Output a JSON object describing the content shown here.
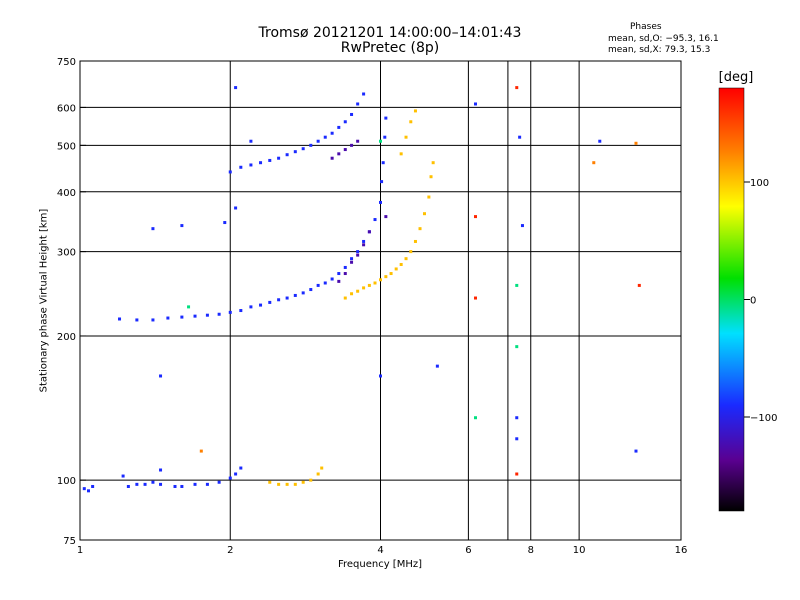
{
  "header": {
    "title": "Tromsø 20121201 14:00:00–14:01:43",
    "subtitle": "RwPretec (8p)"
  },
  "phase_box": {
    "heading": "Phases",
    "line_o": "mean, sd,O: −95.3, 16.1",
    "line_x": "mean, sd,X:  79.3, 15.3"
  },
  "colorbar": {
    "unit": "[deg]",
    "tick_labels": [
      "100",
      "0",
      "−100"
    ],
    "ticks": [
      100,
      0,
      -100
    ],
    "range": [
      -180,
      180
    ]
  },
  "chart_data": {
    "type": "scatter",
    "title": "Tromsø 20121201 14:00:00–14:01:43",
    "subtitle": "RwPretec (8p)",
    "xlabel": "Frequency [MHz]",
    "ylabel": "Stationary phase Virtual Height [km]",
    "x_scale": "log",
    "y_scale": "log",
    "xlim": [
      1,
      16
    ],
    "ylim": [
      75,
      750
    ],
    "x_ticks": [
      1,
      2,
      4,
      6,
      8,
      10,
      16
    ],
    "x_tick_labels": [
      "1",
      "2",
      "4",
      "6",
      "8",
      "10",
      "16"
    ],
    "y_ticks": [
      75,
      100,
      200,
      300,
      400,
      500,
      600,
      750
    ],
    "y_tick_labels": [
      "75",
      "100",
      "200",
      "300",
      "400",
      "500",
      "600",
      "750"
    ],
    "grid_x": [
      2,
      4,
      6,
      7.2,
      8,
      10
    ],
    "grid_y": [
      100,
      200,
      300,
      400,
      500,
      600
    ],
    "color_scale": "phase in degrees",
    "series": [
      {
        "phase": -100,
        "points": [
          [
            1.02,
            96
          ],
          [
            1.04,
            95
          ],
          [
            1.06,
            97
          ],
          [
            1.25,
            97
          ],
          [
            1.3,
            98
          ],
          [
            1.35,
            98
          ],
          [
            1.4,
            99
          ],
          [
            1.45,
            98
          ],
          [
            1.55,
            97
          ],
          [
            1.6,
            97
          ],
          [
            1.7,
            98
          ],
          [
            1.8,
            98
          ],
          [
            1.9,
            99
          ],
          [
            2.0,
            101
          ],
          [
            2.05,
            103
          ],
          [
            2.1,
            106
          ],
          [
            1.22,
            102
          ],
          [
            1.45,
            105
          ],
          [
            1.2,
            217
          ],
          [
            1.3,
            216
          ],
          [
            1.4,
            216
          ],
          [
            1.5,
            218
          ],
          [
            1.6,
            219
          ],
          [
            1.7,
            220
          ],
          [
            1.8,
            221
          ],
          [
            1.9,
            222
          ],
          [
            2.0,
            224
          ],
          [
            2.1,
            226
          ],
          [
            2.2,
            230
          ],
          [
            2.3,
            232
          ],
          [
            2.4,
            235
          ],
          [
            2.5,
            238
          ],
          [
            2.6,
            240
          ],
          [
            2.7,
            243
          ],
          [
            2.8,
            246
          ],
          [
            2.9,
            250
          ],
          [
            3.0,
            255
          ],
          [
            3.1,
            258
          ],
          [
            3.2,
            263
          ],
          [
            3.3,
            270
          ],
          [
            3.4,
            278
          ],
          [
            3.5,
            290
          ],
          [
            3.6,
            300
          ],
          [
            3.7,
            315
          ],
          [
            3.8,
            330
          ],
          [
            3.9,
            350
          ],
          [
            4.0,
            380
          ],
          [
            4.02,
            420
          ],
          [
            4.05,
            460
          ],
          [
            4.08,
            520
          ],
          [
            4.1,
            570
          ],
          [
            2.0,
            440
          ],
          [
            2.1,
            450
          ],
          [
            2.2,
            455
          ],
          [
            2.3,
            460
          ],
          [
            2.4,
            465
          ],
          [
            2.5,
            470
          ],
          [
            2.6,
            478
          ],
          [
            2.7,
            485
          ],
          [
            2.8,
            492
          ],
          [
            2.9,
            500
          ],
          [
            3.0,
            510
          ],
          [
            3.1,
            520
          ],
          [
            3.2,
            530
          ],
          [
            3.3,
            545
          ],
          [
            3.4,
            560
          ],
          [
            3.5,
            580
          ],
          [
            3.6,
            610
          ],
          [
            3.7,
            640
          ],
          [
            1.4,
            335
          ],
          [
            1.6,
            340
          ],
          [
            1.95,
            345
          ],
          [
            2.05,
            370
          ],
          [
            2.05,
            660
          ],
          [
            2.2,
            510
          ],
          [
            1.45,
            165
          ],
          [
            6.2,
            610
          ],
          [
            7.5,
            135
          ],
          [
            7.5,
            122
          ],
          [
            7.6,
            520
          ],
          [
            7.7,
            340
          ],
          [
            11,
            510
          ],
          [
            13,
            115
          ],
          [
            5.2,
            173
          ],
          [
            4.0,
            165
          ]
        ]
      },
      {
        "phase": -130,
        "points": [
          [
            3.2,
            470
          ],
          [
            3.3,
            480
          ],
          [
            3.4,
            490
          ],
          [
            3.5,
            500
          ],
          [
            3.6,
            510
          ],
          [
            3.3,
            260
          ],
          [
            3.4,
            270
          ],
          [
            3.5,
            285
          ],
          [
            3.6,
            295
          ],
          [
            3.7,
            310
          ],
          [
            3.8,
            330
          ],
          [
            4.1,
            355
          ]
        ]
      },
      {
        "phase": 105,
        "points": [
          [
            3.4,
            240
          ],
          [
            3.5,
            245
          ],
          [
            3.6,
            248
          ],
          [
            3.7,
            252
          ],
          [
            3.8,
            255
          ],
          [
            3.9,
            258
          ],
          [
            4.0,
            262
          ],
          [
            4.1,
            266
          ],
          [
            4.2,
            270
          ],
          [
            4.3,
            276
          ],
          [
            4.4,
            282
          ],
          [
            4.5,
            290
          ],
          [
            4.6,
            300
          ],
          [
            4.7,
            315
          ],
          [
            4.8,
            335
          ],
          [
            4.9,
            360
          ],
          [
            5.0,
            390
          ],
          [
            5.05,
            430
          ],
          [
            5.1,
            460
          ],
          [
            4.4,
            480
          ],
          [
            4.5,
            520
          ],
          [
            4.6,
            560
          ],
          [
            4.7,
            590
          ],
          [
            2.4,
            99
          ],
          [
            2.5,
            98
          ],
          [
            2.6,
            98
          ],
          [
            2.7,
            98
          ],
          [
            2.8,
            99
          ],
          [
            2.9,
            100
          ],
          [
            3.0,
            103
          ],
          [
            3.05,
            106
          ]
        ]
      },
      {
        "phase": 130,
        "points": [
          [
            1.75,
            115
          ],
          [
            13,
            505
          ],
          [
            10.7,
            460
          ]
        ]
      },
      {
        "phase": 165,
        "points": [
          [
            6.2,
            355
          ],
          [
            6.2,
            240
          ],
          [
            7.5,
            103
          ],
          [
            7.5,
            660
          ],
          [
            13.2,
            255
          ]
        ]
      },
      {
        "phase": -15,
        "points": [
          [
            1.65,
            230
          ],
          [
            7.5,
            190
          ],
          [
            6.2,
            135
          ],
          [
            4.0,
            510
          ],
          [
            7.5,
            255
          ]
        ]
      }
    ]
  }
}
